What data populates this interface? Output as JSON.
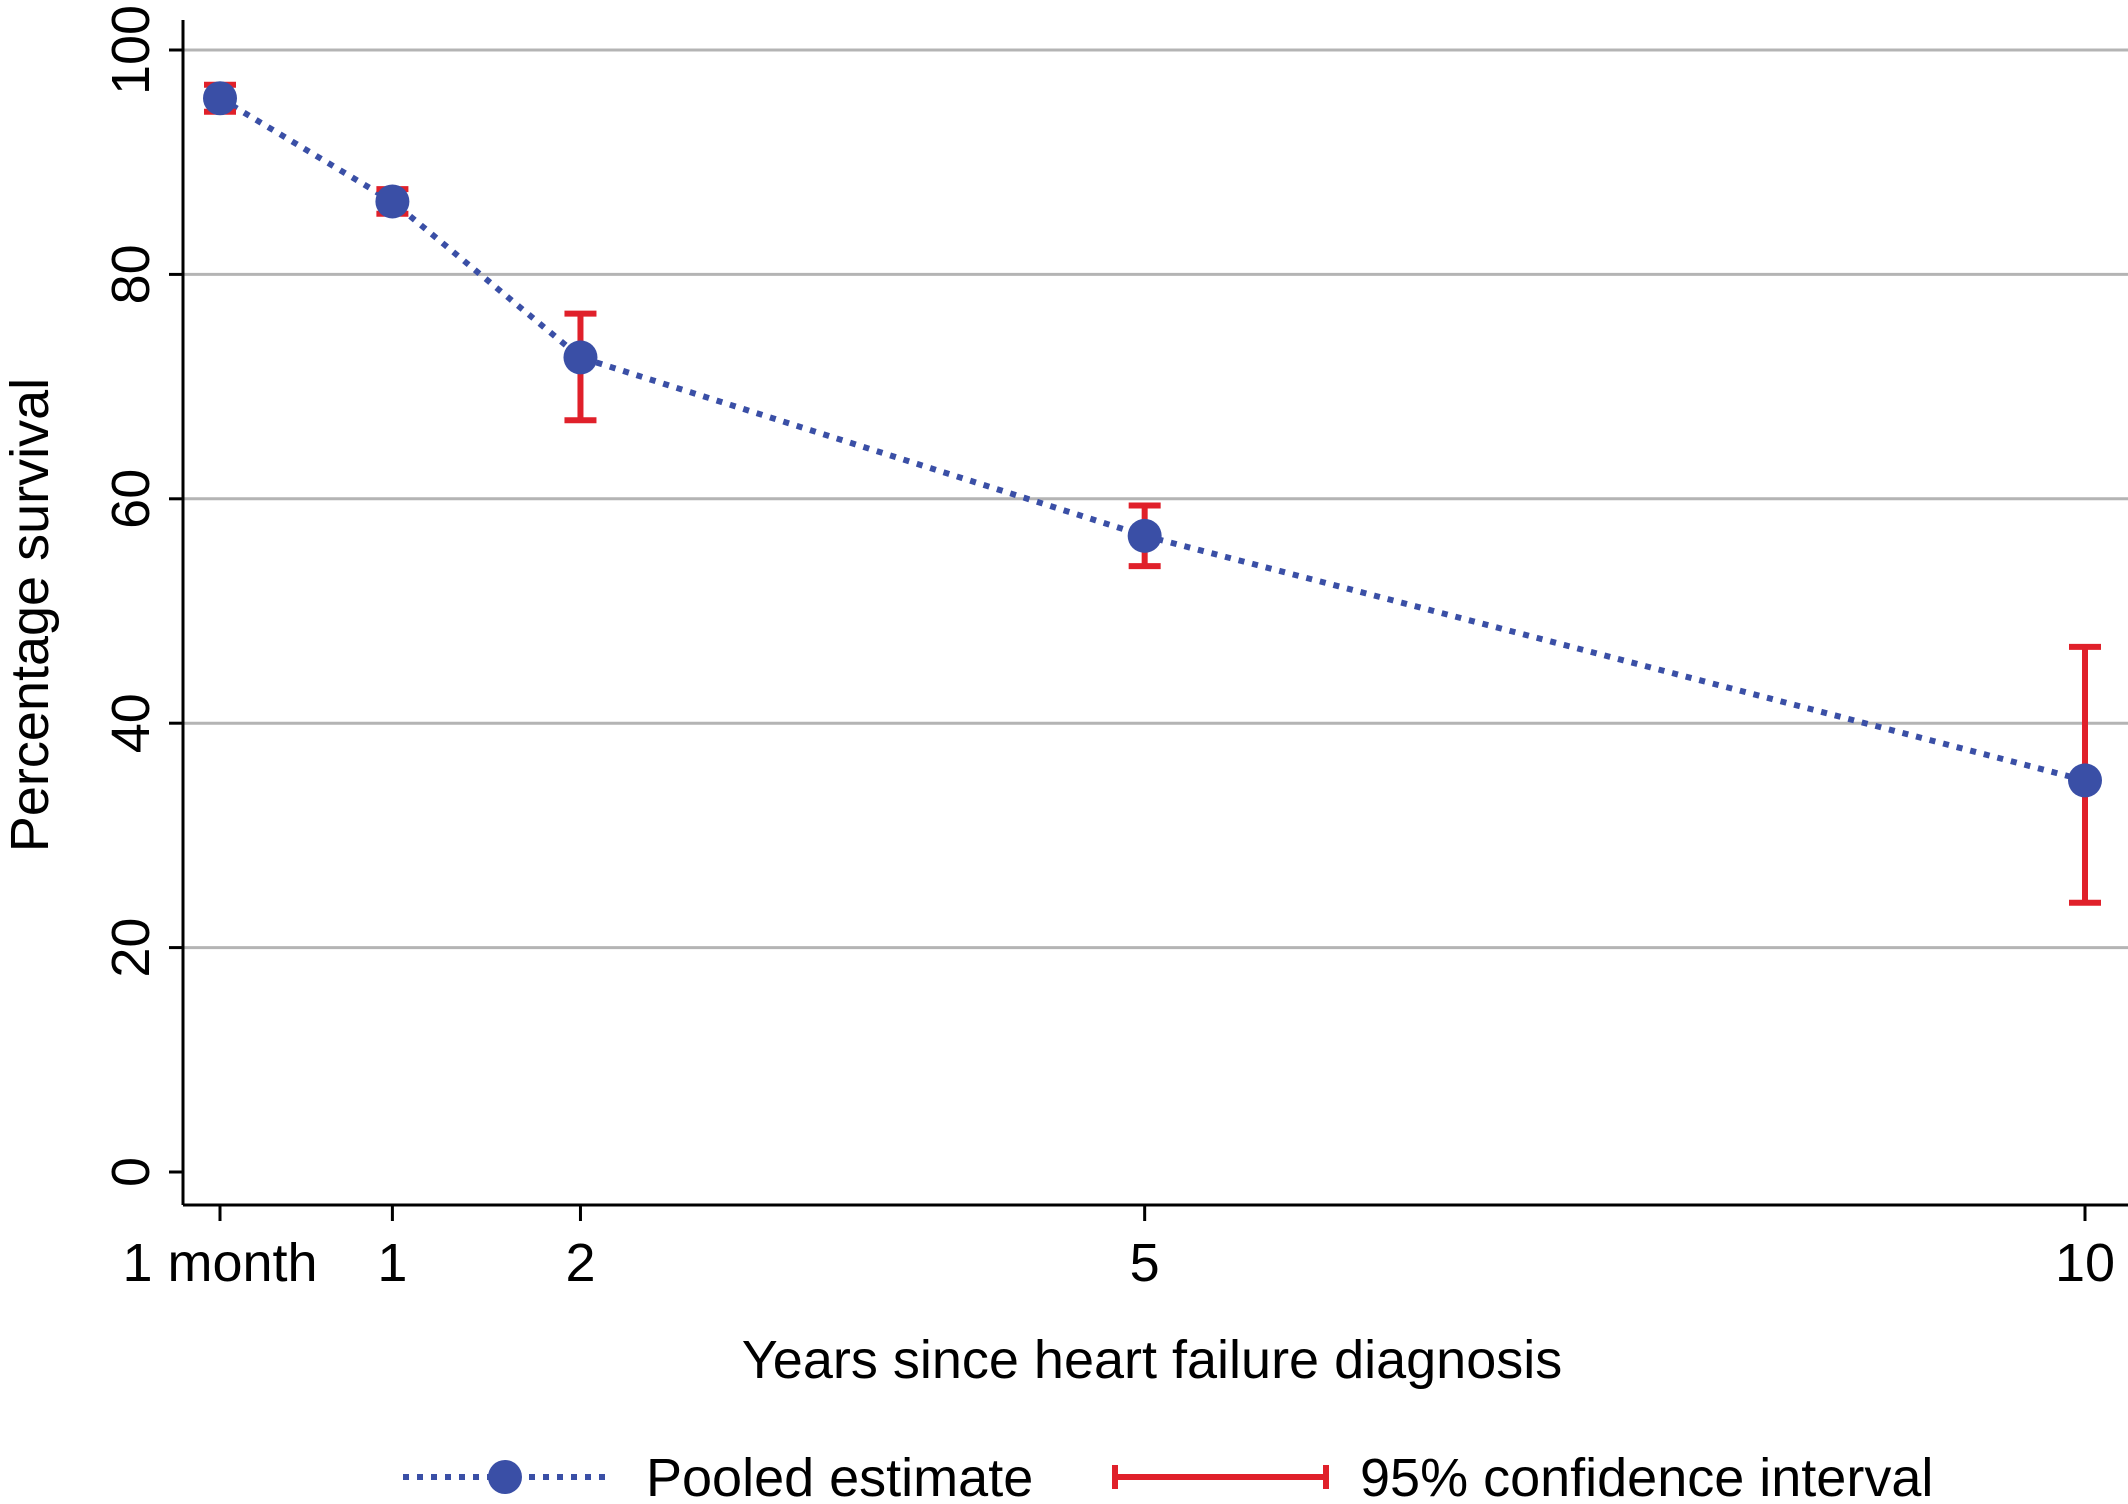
{
  "chart_data": {
    "type": "line",
    "title": "",
    "xlabel": "Years since heart failure diagnosis",
    "ylabel": "Percentage survival",
    "x_ticks": [
      {
        "value": 0.0833,
        "label": "1 month"
      },
      {
        "value": 1,
        "label": "1"
      },
      {
        "value": 2,
        "label": "2"
      },
      {
        "value": 5,
        "label": "5"
      },
      {
        "value": 10,
        "label": "10"
      }
    ],
    "y_ticks": [
      {
        "value": 0,
        "label": "0"
      },
      {
        "value": 20,
        "label": "20"
      },
      {
        "value": 40,
        "label": "40"
      },
      {
        "value": 60,
        "label": "60"
      },
      {
        "value": 80,
        "label": "80"
      },
      {
        "value": 100,
        "label": "100"
      }
    ],
    "xlim": [
      -0.1,
      10
    ],
    "ylim": [
      -3,
      100
    ],
    "grid": "horizontal",
    "legend_position": "bottom",
    "series": [
      {
        "name": "Pooled estimate",
        "style": "dotted line with circle markers",
        "color": "#3a4fa6",
        "points": [
          {
            "x": 0.0833,
            "y": 95.7
          },
          {
            "x": 1,
            "y": 86.5
          },
          {
            "x": 2,
            "y": 72.6
          },
          {
            "x": 5,
            "y": 56.7
          },
          {
            "x": 10,
            "y": 34.9
          }
        ]
      },
      {
        "name": "95% confidence interval",
        "style": "error bars with caps",
        "color": "#e0202a",
        "intervals": [
          {
            "x": 0.0833,
            "low": 94.5,
            "high": 96.9
          },
          {
            "x": 1,
            "low": 85.4,
            "high": 87.6
          },
          {
            "x": 2,
            "low": 67.0,
            "high": 76.5
          },
          {
            "x": 5,
            "low": 54.0,
            "high": 59.4
          },
          {
            "x": 10,
            "low": 24.0,
            "high": 46.8
          }
        ]
      }
    ]
  },
  "colors": {
    "estimate": "#3a4fa6",
    "interval": "#e0202a",
    "grid": "#b4b4b4",
    "axis": "#000000"
  }
}
